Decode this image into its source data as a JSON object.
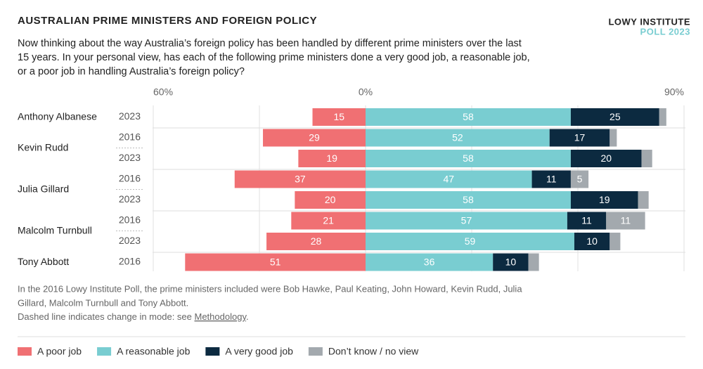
{
  "chart_data": {
    "type": "diverging-stacked-bar",
    "title": "AUSTRALIAN PRIME MINISTERS AND FOREIGN POLICY",
    "subtitle": [
      "Now thinking about the way Australia’s foreign policy has been handled by different prime ministers over the last",
      "15 years. In your personal view, has each of the following prime ministers done a very good job, a reasonable job,",
      "or a poor job in handling Australia’s foreign policy?"
    ],
    "source": {
      "name": "LOWY INSTITUTE",
      "edition": "POLL 2023"
    },
    "groups": [
      {
        "name": "Anthony Albanese",
        "years": [
          "2023"
        ]
      },
      {
        "name": "Kevin Rudd",
        "years": [
          "2016",
          "2023"
        ]
      },
      {
        "name": "Julia Gillard",
        "years": [
          "2016",
          "2023"
        ]
      },
      {
        "name": "Malcolm Turnbull",
        "years": [
          "2016",
          "2023"
        ]
      },
      {
        "name": "Tony Abbott",
        "years": [
          "2016"
        ]
      }
    ],
    "series": [
      {
        "name": "A poor job",
        "color": "#f07073",
        "side": "negative",
        "values": [
          15,
          29,
          19,
          37,
          20,
          21,
          28,
          51
        ]
      },
      {
        "name": "A reasonable job",
        "color": "#79cdd1",
        "side": "positive",
        "values": [
          58,
          52,
          58,
          47,
          58,
          57,
          59,
          36
        ]
      },
      {
        "name": "A very good job",
        "color": "#0c2a40",
        "side": "positive",
        "values": [
          25,
          17,
          20,
          11,
          19,
          11,
          10,
          10
        ]
      },
      {
        "name": "Don’t know / no view",
        "color": "#a3a9ae",
        "side": "positive",
        "values": [
          2,
          2,
          3,
          5,
          3,
          11,
          3,
          3
        ]
      }
    ],
    "xlim": [
      -60,
      90
    ],
    "xticks": [
      {
        "value": -60,
        "label": "60%"
      },
      {
        "value": -30,
        "label": null
      },
      {
        "value": 0,
        "label": "0%"
      },
      {
        "value": 30,
        "label": null
      },
      {
        "value": 60,
        "label": null
      },
      {
        "value": 90,
        "label": "90%"
      }
    ],
    "grid": true,
    "notes": [
      "In the 2016 Lowy Institute Poll, the prime ministers included were Bob Hawke, Paul Keating, John Howard, Kevin Rudd, Julia",
      "Gillard, Malcolm Turnbull and Tony Abbott."
    ],
    "mode_note": {
      "text": "Dashed line indicates change in mode: see ",
      "link": "Methodology",
      "end": "."
    }
  }
}
